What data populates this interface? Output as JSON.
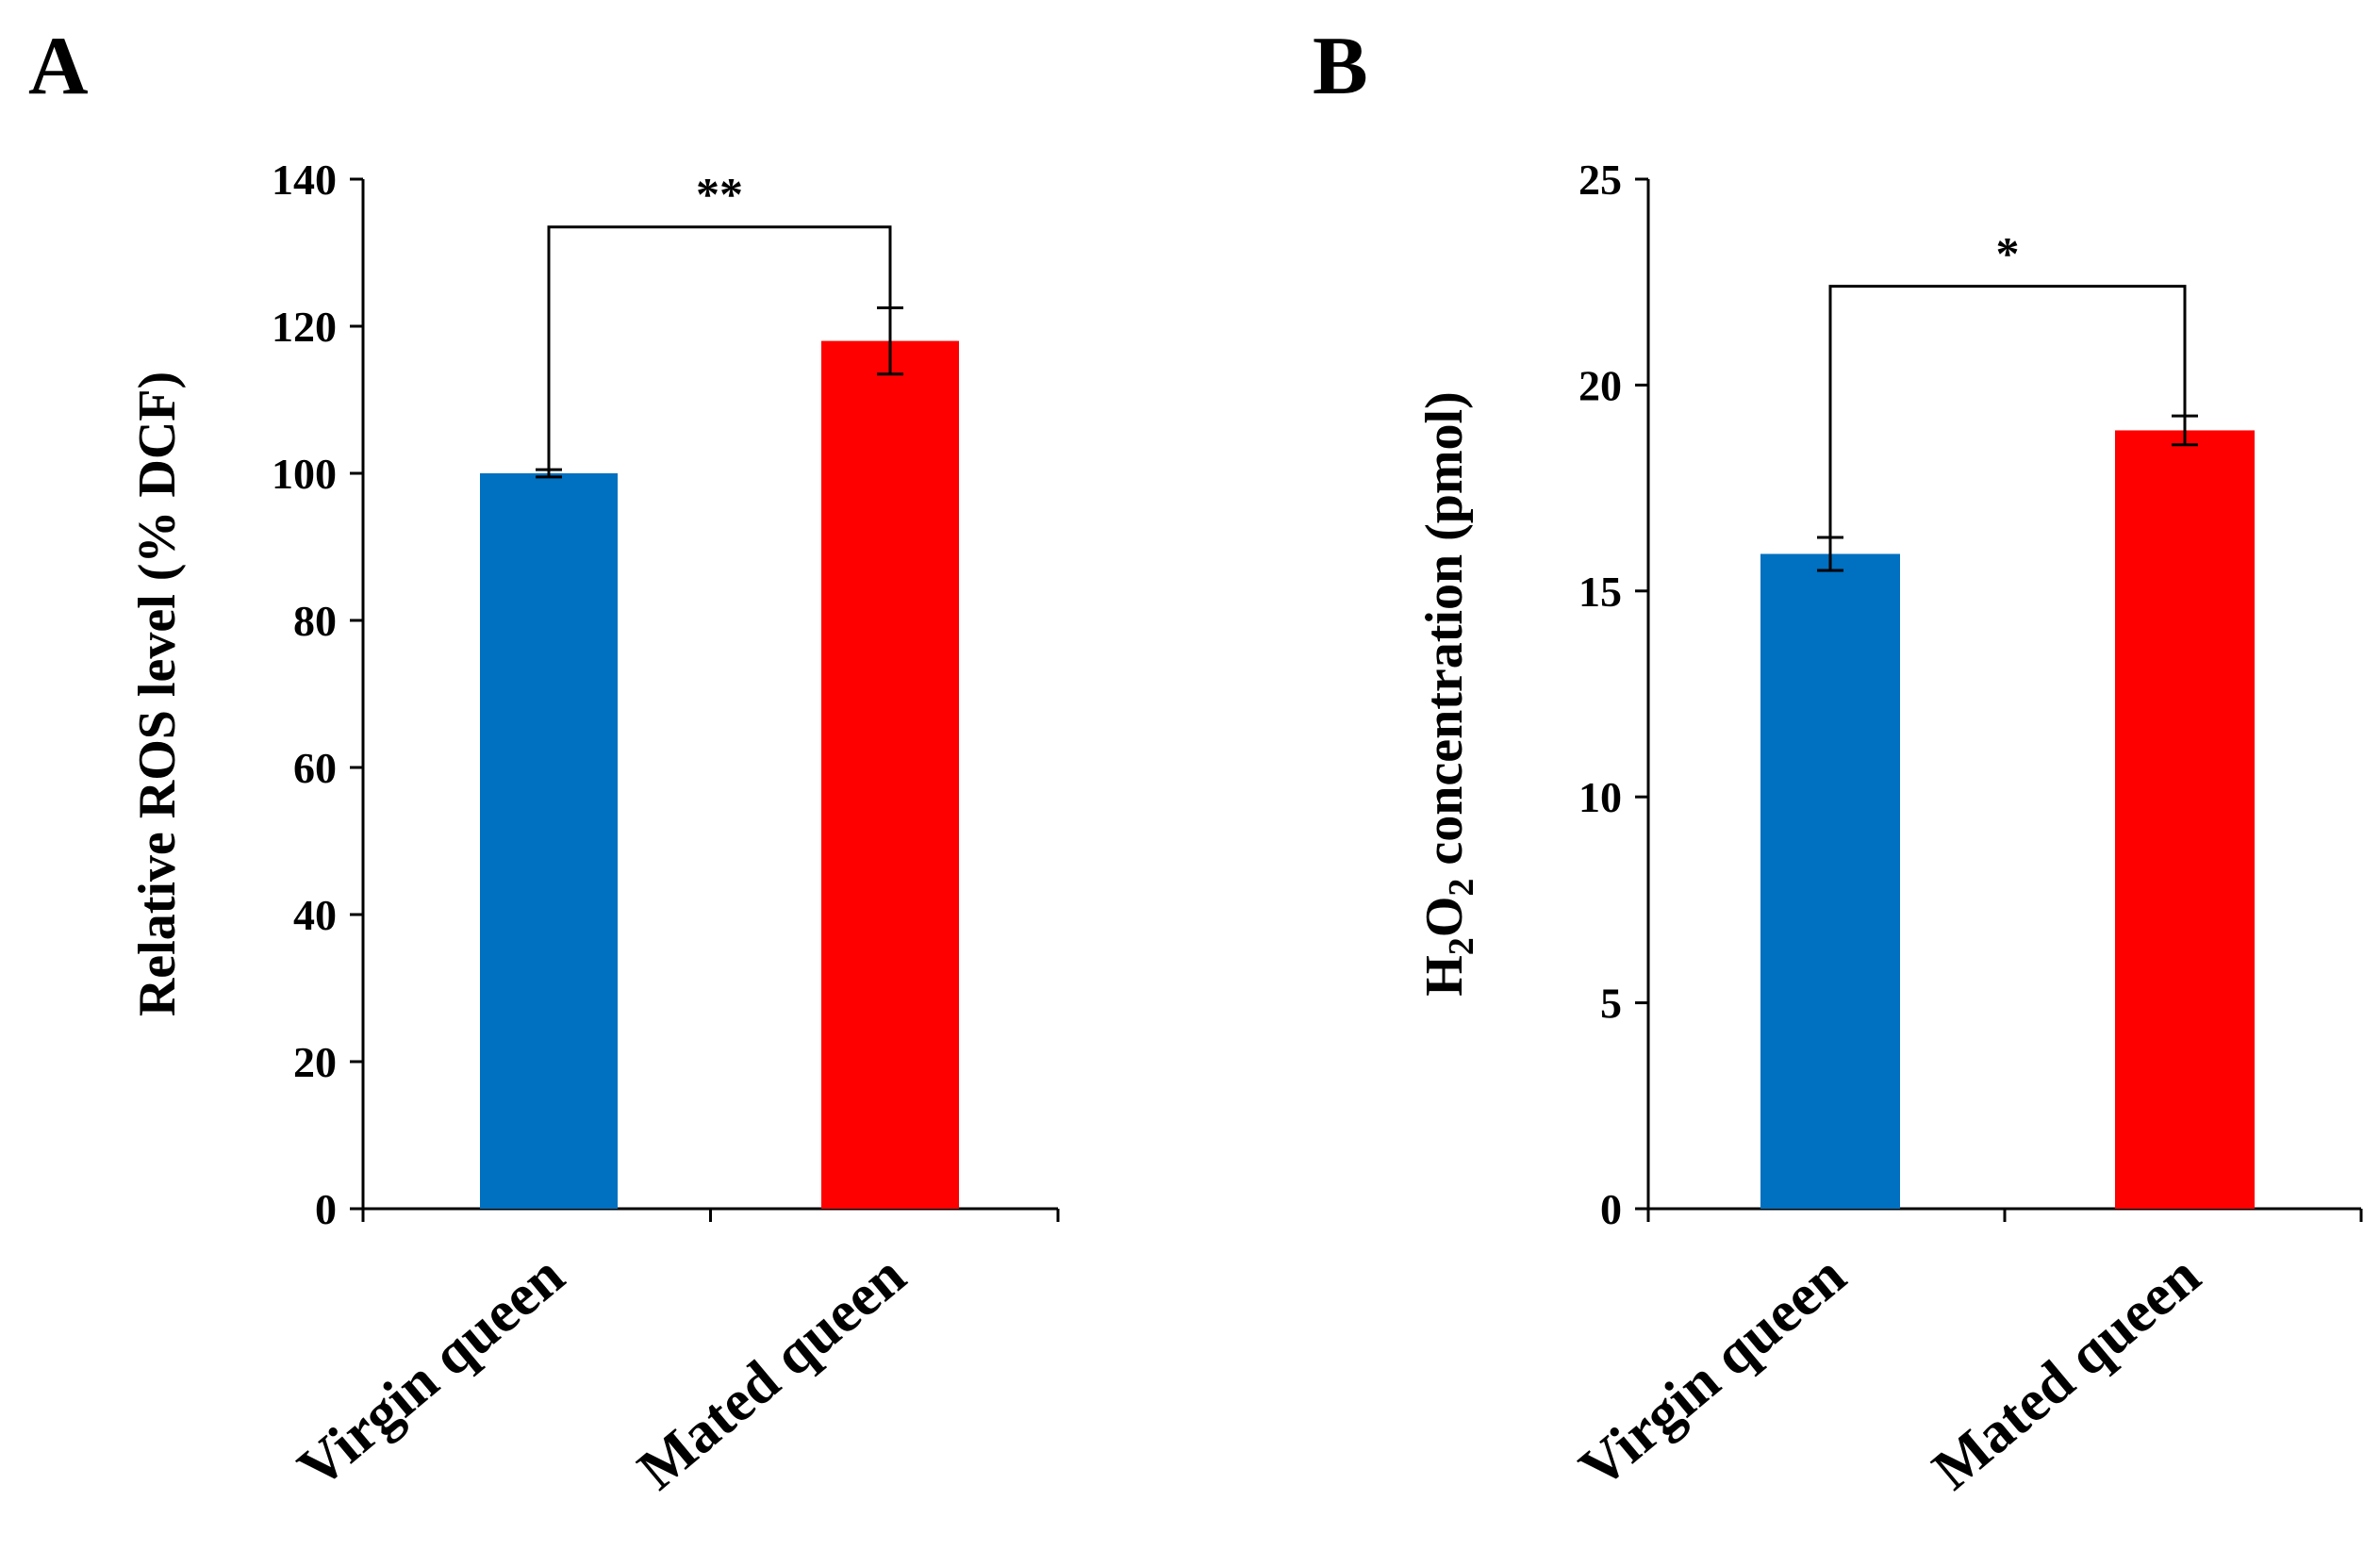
{
  "panels": [
    {
      "letter": "A"
    },
    {
      "letter": "B"
    }
  ],
  "chart_data": [
    {
      "type": "bar",
      "panel": "A",
      "title": "",
      "categories": [
        "Virgin queen",
        "Mated queen"
      ],
      "values": [
        100,
        118
      ],
      "errors": [
        0.5,
        4.5
      ],
      "colors": [
        "#0070C0",
        "#FF0000"
      ],
      "xlabel": "",
      "ylabel": "Relative ROS level (% DCF)",
      "ylim": [
        0,
        140
      ],
      "yticks": [
        0,
        20,
        40,
        60,
        80,
        100,
        120,
        140
      ],
      "significance": {
        "label": "**",
        "y": 133.5
      },
      "grid": false
    },
    {
      "type": "bar",
      "panel": "B",
      "title": "",
      "categories": [
        "Virgin queen",
        "Mated queen"
      ],
      "values": [
        15.9,
        18.9
      ],
      "errors": [
        0.4,
        0.35
      ],
      "colors": [
        "#0070C0",
        "#FF0000"
      ],
      "xlabel": "",
      "ylabel": "H2O2 concentration (pmol)",
      "ylabel_parts": {
        "h": "H",
        "sub1": "2",
        "o": "O",
        "sub2": "2",
        "rest": " concentration (pmol)"
      },
      "ylim": [
        0,
        25
      ],
      "yticks": [
        0,
        5,
        10,
        15,
        20,
        25
      ],
      "significance": {
        "label": "*",
        "y": 22.4
      },
      "grid": false
    }
  ]
}
